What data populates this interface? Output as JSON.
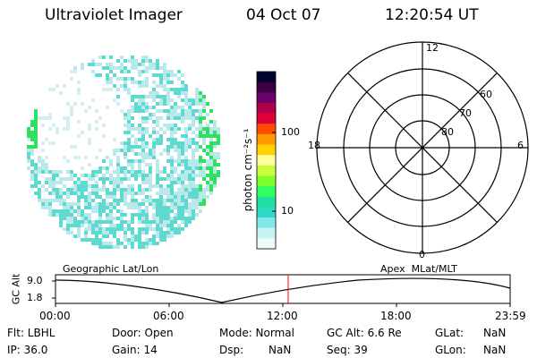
{
  "header": {
    "instrument": "Ultraviolet Imager",
    "date": "04 Oct 07",
    "time": "12:20:54 UT"
  },
  "colorbar": {
    "label": "photon cm⁻²s⁻¹",
    "ticks": [
      "100",
      "10"
    ],
    "colors": [
      "#000033",
      "#3a0040",
      "#6a006a",
      "#b0004a",
      "#e0003a",
      "#ff4a00",
      "#ff9a00",
      "#ffd200",
      "#ffff99",
      "#c8ff3c",
      "#80ff30",
      "#30ff60",
      "#20e0a0",
      "#30d8c8",
      "#80e8e8",
      "#c8f4f4",
      "#eefafa"
    ]
  },
  "polar": {
    "mlt_labels": {
      "top": "12",
      "left": "18",
      "right": "6",
      "bottom": "0"
    },
    "lat_labels": [
      "60",
      "70",
      "80"
    ]
  },
  "timeline": {
    "left_label": "Geographic Lat/Lon",
    "right_label": "Apex  MLat/MLT",
    "axis_title": "GC Alt",
    "y_ticks": [
      "9.0",
      "1.8"
    ],
    "x_ticks": [
      "00:00",
      "06:00",
      "12:00",
      "18:00",
      "23:59"
    ]
  },
  "status": {
    "flt": "Flt: LBHL",
    "ip": "IP: 36.0",
    "door": "Door: Open",
    "gain": "Gain: 14",
    "mode": "Mode: Normal",
    "dsp_label": "Dsp:",
    "dsp_value": "NaN",
    "gc_alt": "GC Alt: 6.6 Re",
    "seq": "Seq: 39",
    "glat_label": "GLat:",
    "glat_value": "NaN",
    "glon_label": "GLon:",
    "glon_value": "NaN"
  },
  "colors": {
    "marker": "#ff0000",
    "speckle_light": "#b8e8ea",
    "speckle_mid": "#5fd8d0",
    "speckle_green": "#30e060"
  }
}
